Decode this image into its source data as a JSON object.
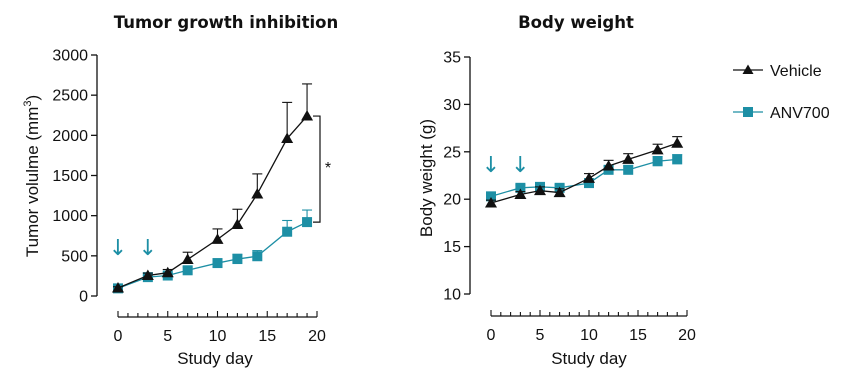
{
  "colors": {
    "vehicle": "#111111",
    "anv700": "#1d8fa5",
    "axis": "#111111"
  },
  "legend": {
    "vehicle_label": "Vehicle",
    "anv700_label": "ANV700",
    "placement": "right"
  },
  "chart_data": [
    {
      "type": "line",
      "title": "Tumor growth inhibition",
      "xlabel": "Study day",
      "ylabel": "Tumor volulme (mm³)",
      "ylabel_main": "Tumor volulme (mm",
      "ylabel_sup": "3",
      "ylabel_close": ")",
      "xlim": [
        0,
        20
      ],
      "ylim": [
        0,
        3000
      ],
      "xticks": [
        0,
        5,
        10,
        15,
        20
      ],
      "yticks": [
        0,
        500,
        1000,
        1500,
        2000,
        2500,
        3000
      ],
      "grid": false,
      "dosing_days": [
        0,
        3
      ],
      "dosing_symbol": "↓",
      "significance": {
        "label": "*",
        "between": [
          "Vehicle",
          "ANV700"
        ],
        "day": 19
      },
      "series": [
        {
          "name": "Vehicle",
          "marker": "triangle",
          "x": [
            0,
            3,
            5,
            7,
            10,
            12,
            14,
            17,
            19
          ],
          "y": [
            100,
            255,
            290,
            455,
            705,
            890,
            1270,
            1960,
            2240
          ],
          "err": [
            15,
            30,
            40,
            90,
            130,
            190,
            250,
            450,
            400
          ]
        },
        {
          "name": "ANV700",
          "marker": "square",
          "x": [
            0,
            3,
            5,
            7,
            10,
            12,
            14,
            17,
            19
          ],
          "y": [
            95,
            235,
            255,
            320,
            410,
            460,
            495,
            800,
            920
          ],
          "err": [
            15,
            25,
            30,
            40,
            50,
            60,
            70,
            140,
            150
          ]
        }
      ]
    },
    {
      "type": "line",
      "title": "Body weight",
      "xlabel": "Study day",
      "ylabel": "Body weight (g)",
      "xlim": [
        0,
        20
      ],
      "ylim": [
        10,
        35
      ],
      "xticks": [
        0,
        5,
        10,
        15,
        20
      ],
      "yticks": [
        10,
        15,
        20,
        25,
        30,
        35
      ],
      "grid": false,
      "dosing_days": [
        0,
        3
      ],
      "dosing_symbol": "↓",
      "series": [
        {
          "name": "Vehicle",
          "marker": "triangle",
          "x": [
            0,
            3,
            5,
            7,
            10,
            12,
            14,
            17,
            19
          ],
          "y": [
            19.6,
            20.5,
            20.9,
            20.7,
            22.2,
            23.5,
            24.2,
            25.2,
            25.9
          ],
          "err": [
            0.3,
            0.3,
            0.4,
            0.4,
            0.5,
            0.6,
            0.6,
            0.6,
            0.7
          ]
        },
        {
          "name": "ANV700",
          "marker": "square",
          "x": [
            0,
            3,
            5,
            7,
            10,
            12,
            14,
            17,
            19
          ],
          "y": [
            20.3,
            21.2,
            21.3,
            21.2,
            21.7,
            23.1,
            23.1,
            24.0,
            24.2
          ],
          "err": [
            0.3,
            0.3,
            0.3,
            0.3,
            0.4,
            0.4,
            0.4,
            0.5,
            0.5
          ]
        }
      ]
    }
  ]
}
